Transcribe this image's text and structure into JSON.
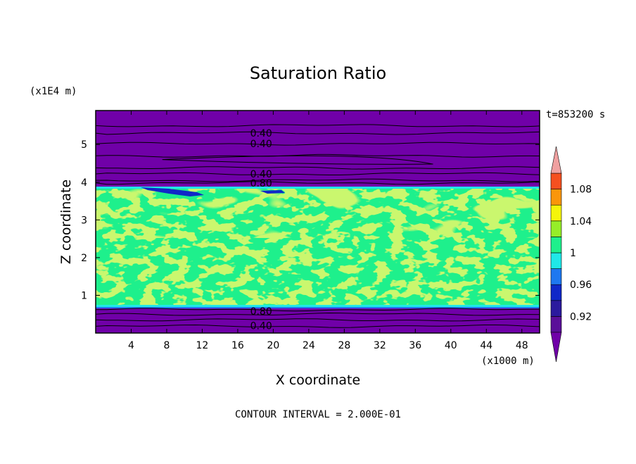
{
  "chart_data": {
    "type": "heatmap",
    "title": "Saturation Ratio",
    "xlabel": "X coordinate",
    "ylabel": "Z coordinate",
    "x_unit": "(x1000 m)",
    "y_unit": "(x1E4 m)",
    "time_label": "t=853200 s",
    "footer": "CONTOUR INTERVAL = 2.000E-01",
    "xlim": [
      0,
      50
    ],
    "ylim": [
      0,
      5.9
    ],
    "x_ticks": [
      "4",
      "8",
      "12",
      "16",
      "20",
      "24",
      "28",
      "32",
      "36",
      "40",
      "44",
      "48"
    ],
    "x_tick_values": [
      4,
      8,
      12,
      16,
      20,
      24,
      28,
      32,
      36,
      40,
      44,
      48
    ],
    "y_ticks": [
      "1",
      "2",
      "3",
      "4",
      "5"
    ],
    "y_tick_values": [
      1,
      2,
      3,
      4,
      5
    ],
    "contour_labels": [
      {
        "text": "0.40",
        "x": 17.4,
        "y": 5.3
      },
      {
        "text": "0.40",
        "x": 17.4,
        "y": 5.02
      },
      {
        "text": "0.40",
        "x": 17.4,
        "y": 4.22
      },
      {
        "text": "0.80",
        "x": 17.4,
        "y": 3.98
      },
      {
        "text": "0.80",
        "x": 17.4,
        "y": 0.58
      },
      {
        "text": "0.40",
        "x": 17.4,
        "y": 0.2
      }
    ],
    "colorbar": {
      "labels": [
        "1.08",
        "1.04",
        "1",
        "0.96",
        "0.92"
      ],
      "levels": [
        0.9,
        0.92,
        0.94,
        0.96,
        0.98,
        1.0,
        1.02,
        1.04,
        1.06,
        1.08,
        1.1
      ],
      "colors": [
        "#5a0f99",
        "#2b1a9e",
        "#1028c8",
        "#1e78f0",
        "#20e8e8",
        "#1ef08c",
        "#96ee28",
        "#f5f50a",
        "#fa960a",
        "#f55020",
        "#eb2020"
      ],
      "under_color": "#7000a8",
      "over_color": "#f0a0a0"
    },
    "regions": [
      {
        "z_range": [
          0,
          0.7
        ],
        "value_class": "below 0.90",
        "color": "#7000a8"
      },
      {
        "z_range": [
          0.7,
          3.85
        ],
        "value_class": "0.98-1.02 mixed",
        "colors": [
          "#1ef08c",
          "#96ee28"
        ]
      },
      {
        "z_range": [
          3.85,
          5.9
        ],
        "value_class": "below 0.90",
        "color": "#7000a8"
      }
    ]
  }
}
